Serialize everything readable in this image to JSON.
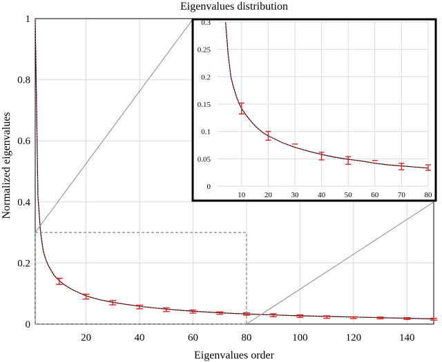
{
  "chart_data": [
    {
      "type": "line",
      "title": "Eigenvalues distribution",
      "xlabel": "Eigenvalues order",
      "ylabel": "Normalized eigenvalues",
      "xlim": [
        1,
        150
      ],
      "ylim": [
        0,
        1
      ],
      "xticks": [
        20,
        40,
        60,
        80,
        100,
        120,
        140
      ],
      "yticks": [
        0,
        0.2,
        0.4,
        0.6,
        0.8,
        1
      ],
      "ytick_labels": [
        "0",
        "0.2",
        "0.4",
        "0.6",
        "0.8",
        "1"
      ],
      "grid": true,
      "curve": {
        "x": [
          1,
          2,
          3,
          4,
          5,
          6,
          8,
          10,
          12,
          15,
          20,
          25,
          30,
          40,
          50,
          60,
          70,
          80,
          90,
          100,
          110,
          120,
          130,
          140,
          150
        ],
        "y": [
          1.0,
          0.42,
          0.3,
          0.24,
          0.21,
          0.19,
          0.16,
          0.142,
          0.128,
          0.112,
          0.092,
          0.08,
          0.071,
          0.058,
          0.049,
          0.042,
          0.037,
          0.033,
          0.03,
          0.027,
          0.025,
          0.023,
          0.021,
          0.019,
          0.017
        ]
      },
      "error_bars": {
        "x": [
          10,
          20,
          30,
          40,
          50,
          60,
          70,
          80,
          90,
          100,
          110,
          120,
          130,
          140,
          150
        ],
        "y": [
          0.14,
          0.09,
          0.07,
          0.056,
          0.047,
          0.041,
          0.036,
          0.033,
          0.029,
          0.026,
          0.023,
          0.021,
          0.02,
          0.018,
          0.016
        ],
        "err": [
          0.01,
          0.008,
          0.007,
          0.006,
          0.006,
          0.005,
          0.004,
          0.004,
          0.005,
          0.004,
          0.004,
          0.003,
          0.003,
          0.003,
          0.003
        ]
      },
      "zoom_region": {
        "x": [
          1,
          80
        ],
        "y": [
          0,
          0.3
        ]
      }
    },
    {
      "type": "line",
      "role": "inset",
      "xlim": [
        1,
        80
      ],
      "ylim": [
        0,
        0.3
      ],
      "xticks": [
        10,
        20,
        30,
        40,
        50,
        60,
        70,
        80
      ],
      "yticks": [
        0,
        0.05,
        0.1,
        0.15,
        0.2,
        0.25,
        0.3
      ],
      "ytick_labels": [
        "0",
        "0.05",
        "0.1",
        "0.15",
        "0.2",
        "0.25",
        "0.3"
      ],
      "grid": true,
      "curve": {
        "x": [
          4,
          5,
          6,
          7,
          8,
          9,
          10,
          12,
          14,
          16,
          18,
          20,
          25,
          30,
          35,
          40,
          45,
          50,
          55,
          60,
          65,
          70,
          75,
          80
        ],
        "y": [
          0.3,
          0.24,
          0.2,
          0.18,
          0.165,
          0.152,
          0.142,
          0.128,
          0.116,
          0.106,
          0.098,
          0.092,
          0.08,
          0.071,
          0.064,
          0.058,
          0.053,
          0.049,
          0.046,
          0.042,
          0.039,
          0.037,
          0.035,
          0.033
        ]
      },
      "error_bars": {
        "x": [
          10,
          20,
          30,
          40,
          50,
          60,
          70,
          80
        ],
        "y": [
          0.142,
          0.092,
          0.077,
          0.055,
          0.047,
          0.047,
          0.036,
          0.034
        ],
        "err": [
          0.01,
          0.008,
          0.0,
          0.007,
          0.007,
          0.0,
          0.006,
          0.005
        ]
      }
    }
  ]
}
